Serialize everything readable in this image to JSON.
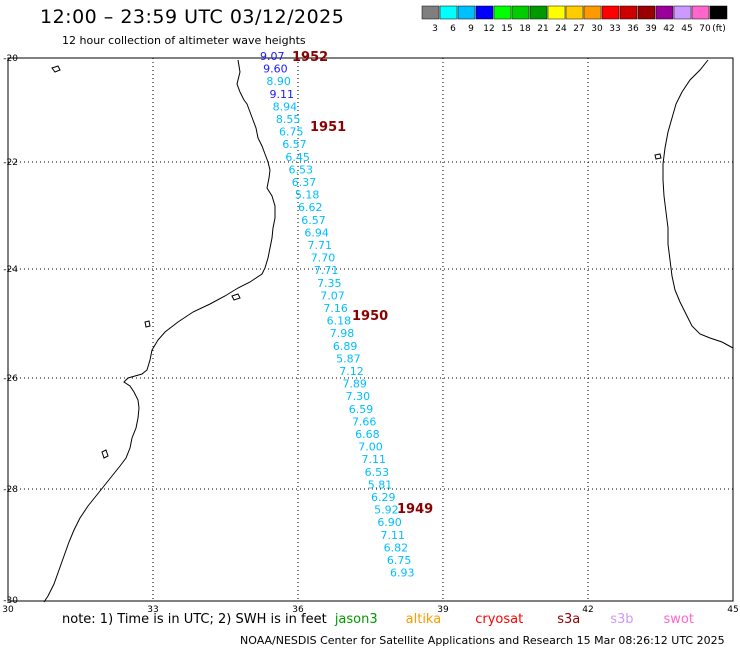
{
  "title": "12:00 – 23:59 UTC 03/12/2025",
  "subtitle": "12 hour collection of altimeter wave heights",
  "legend": {
    "unit": "(ft)",
    "bins": [
      {
        "label": "3",
        "color": "#7f7f7f"
      },
      {
        "label": "6",
        "color": "#00ffff"
      },
      {
        "label": "9",
        "color": "#00bfff"
      },
      {
        "label": "12",
        "color": "#0000ff"
      },
      {
        "label": "15",
        "color": "#00ff00"
      },
      {
        "label": "18",
        "color": "#00cc00"
      },
      {
        "label": "21",
        "color": "#009900"
      },
      {
        "label": "24",
        "color": "#ffff00"
      },
      {
        "label": "27",
        "color": "#ffcc00"
      },
      {
        "label": "30",
        "color": "#ff9900"
      },
      {
        "label": "33",
        "color": "#ff0000"
      },
      {
        "label": "36",
        "color": "#cc0000"
      },
      {
        "label": "39",
        "color": "#990000"
      },
      {
        "label": "42",
        "color": "#990099"
      },
      {
        "label": "45",
        "color": "#cc99ff"
      },
      {
        "label": "70",
        "color": "#ff66cc"
      },
      {
        "label": "",
        "color": "#000000"
      }
    ]
  },
  "axes": {
    "x_ticks": [
      "30",
      "33",
      "36",
      "39",
      "42",
      "45"
    ],
    "y_ticks": [
      "-20",
      "-22",
      "-24",
      "-26",
      "-28",
      "-30"
    ]
  },
  "track_labels": [
    {
      "text": "1952",
      "color": "#8b0000"
    },
    {
      "text": "1951",
      "color": "#8b0000"
    },
    {
      "text": "1950",
      "color": "#8b0000"
    },
    {
      "text": "1949",
      "color": "#8b0000"
    }
  ],
  "wave_heights": [
    {
      "value": "9.07",
      "color": "#1a1aff"
    },
    {
      "value": "9.60",
      "color": "#1a1aff"
    },
    {
      "value": "8.90",
      "color": "#00bfff"
    },
    {
      "value": "9.11",
      "color": "#1a1aff"
    },
    {
      "value": "8.94",
      "color": "#00bfff"
    },
    {
      "value": "8.55",
      "color": "#00bfff"
    },
    {
      "value": "6.75",
      "color": "#00bfff"
    },
    {
      "value": "6.57",
      "color": "#00bfff"
    },
    {
      "value": "6.45",
      "color": "#00bfff"
    },
    {
      "value": "6.53",
      "color": "#00bfff"
    },
    {
      "value": "6.37",
      "color": "#00bfff"
    },
    {
      "value": "5.18",
      "color": "#00bfff"
    },
    {
      "value": "6.62",
      "color": "#00bfff"
    },
    {
      "value": "6.57",
      "color": "#00bfff"
    },
    {
      "value": "6.94",
      "color": "#00bfff"
    },
    {
      "value": "7.71",
      "color": "#00bfff"
    },
    {
      "value": "7.70",
      "color": "#00bfff"
    },
    {
      "value": "7.71",
      "color": "#00bfff"
    },
    {
      "value": "7.35",
      "color": "#00bfff"
    },
    {
      "value": "7.07",
      "color": "#00bfff"
    },
    {
      "value": "7.16",
      "color": "#00bfff"
    },
    {
      "value": "6.18",
      "color": "#00bfff"
    },
    {
      "value": "7.98",
      "color": "#00bfff"
    },
    {
      "value": "6.89",
      "color": "#00bfff"
    },
    {
      "value": "5.87",
      "color": "#00bfff"
    },
    {
      "value": "7.12",
      "color": "#00bfff"
    },
    {
      "value": "7.89",
      "color": "#00bfff"
    },
    {
      "value": "7.30",
      "color": "#00bfff"
    },
    {
      "value": "6.59",
      "color": "#00bfff"
    },
    {
      "value": "7.66",
      "color": "#00bfff"
    },
    {
      "value": "6.68",
      "color": "#00bfff"
    },
    {
      "value": "7.00",
      "color": "#00bfff"
    },
    {
      "value": "7.11",
      "color": "#00bfff"
    },
    {
      "value": "6.53",
      "color": "#00bfff"
    },
    {
      "value": "5.81",
      "color": "#00bfff"
    },
    {
      "value": "6.29",
      "color": "#00bfff"
    },
    {
      "value": "5.92",
      "color": "#00bfff"
    },
    {
      "value": "6.90",
      "color": "#00bfff"
    },
    {
      "value": "7.11",
      "color": "#00bfff"
    },
    {
      "value": "6.82",
      "color": "#00bfff"
    },
    {
      "value": "6.75",
      "color": "#00bfff"
    },
    {
      "value": "6.93",
      "color": "#00bfff"
    }
  ],
  "footer": {
    "note": "note:  1) Time is in UTC; 2) SWH is in feet",
    "satellites": [
      {
        "name": "jason3",
        "color": "#009900"
      },
      {
        "name": "altika",
        "color": "#ff9900"
      },
      {
        "name": "cryosat",
        "color": "#ff0000"
      },
      {
        "name": "s3a",
        "color": "#8b0000"
      },
      {
        "name": "s3b",
        "color": "#cc99ff"
      },
      {
        "name": "swot",
        "color": "#ff66cc"
      }
    ],
    "credit": "NOAA/NESDIS Center for Satellite Applications and Research     15 Mar 08:26:12 UTC 2025"
  }
}
